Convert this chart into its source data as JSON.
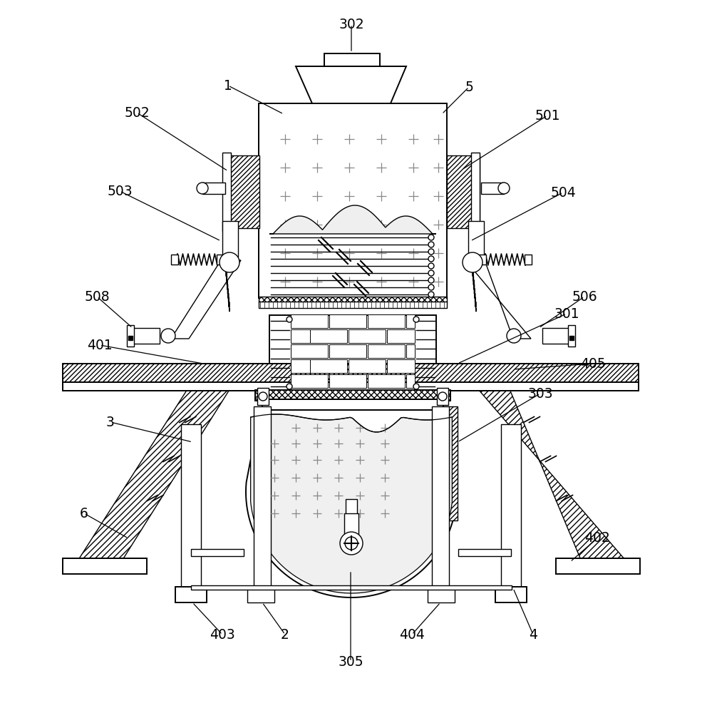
{
  "bg_color": "#ffffff",
  "figsize": [
    9.85,
    10.0
  ],
  "dpi": 100
}
